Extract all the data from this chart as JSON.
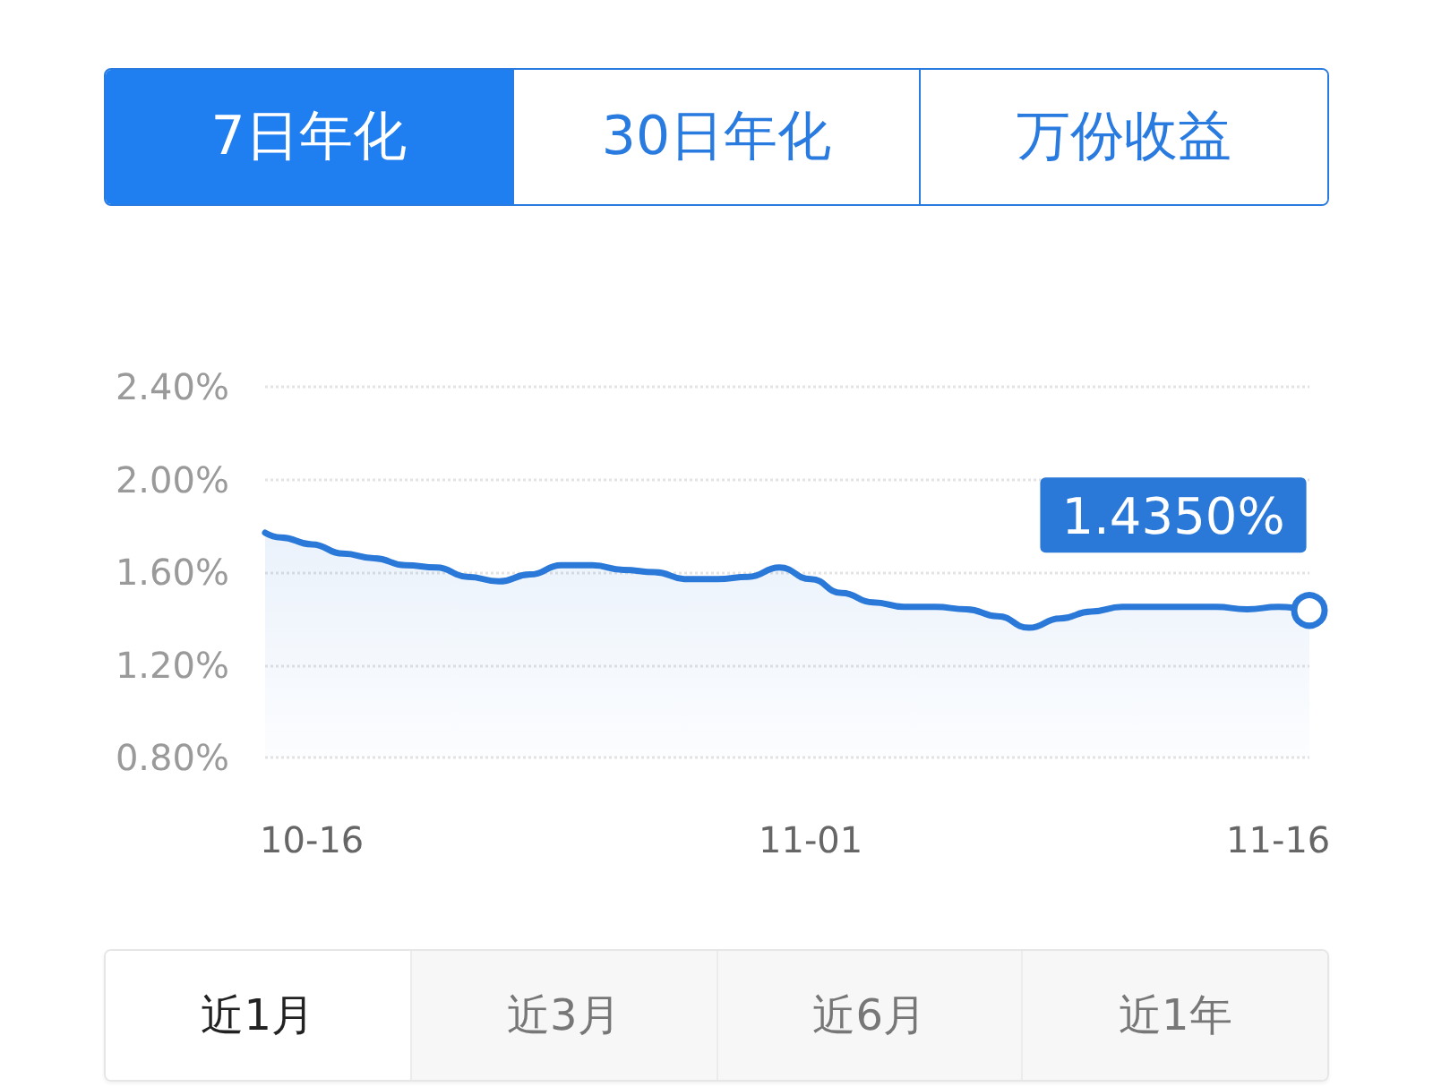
{
  "chart_data": [
    {
      "type": "other",
      "categories": [
        "7日年化",
        "30日年化",
        "万份收益"
      ],
      "colors": [
        "#1f7ff0",
        "#ffffff",
        "#ffffff"
      ]
    },
    {
      "type": "area",
      "x": [
        "--10-14T12:00",
        "--10-15",
        "--10-16",
        "--10-17",
        "--10-18",
        "--10-19",
        "--10-20",
        "--10-21",
        "--10-22",
        "--10-23",
        "--10-24",
        "--10-25",
        "--10-26",
        "--10-27",
        "--10-28",
        "--10-29",
        "--10-30",
        "--10-31",
        "--11-01",
        "--11-02",
        "--11-03",
        "--11-04",
        "--11-05",
        "--11-06",
        "--11-07",
        "--11-08",
        "--11-09",
        "--11-10",
        "--11-11",
        "--11-12",
        "--11-13",
        "--11-14",
        "--11-15",
        "--11-16",
        "--11-17"
      ],
      "series": [
        {
          "type": "area",
          "color": "#2a78d8",
          "values": [
            1.77,
            1.75,
            1.72,
            1.68,
            1.66,
            1.63,
            1.62,
            1.58,
            1.56,
            1.59,
            1.63,
            1.63,
            1.61,
            1.6,
            1.57,
            1.57,
            1.58,
            1.62,
            1.57,
            1.51,
            1.47,
            1.45,
            1.45,
            1.44,
            1.41,
            1.36,
            1.4,
            1.43,
            1.45,
            1.45,
            1.45,
            1.45,
            1.44,
            1.45,
            1.435
          ]
        },
        {
          "type": "scatter",
          "color": "#2a78d8",
          "marker": "circle",
          "x": [
            "--11-17"
          ],
          "values": [
            1.435
          ],
          "value_labels": [
            "1.4350%"
          ]
        }
      ],
      "grid": "y",
      "xlim": [
        "--10-14T12:00",
        "--11-17"
      ],
      "xticks": [
        {
          "value": "--10-16",
          "label": "10-16"
        },
        {
          "value": "--11-01",
          "label": "11-01"
        },
        {
          "value": "--11-16",
          "label": "11-16"
        }
      ],
      "ylim": [
        0.8,
        2.4
      ],
      "yticks": [
        {
          "value": 0.8,
          "label": "0.80%"
        },
        {
          "value": 1.2,
          "label": "1.20%"
        },
        {
          "value": 1.6,
          "label": "1.60%"
        },
        {
          "value": 2.0,
          "label": "2.00%"
        },
        {
          "value": 2.4,
          "label": "2.40%"
        }
      ]
    },
    {
      "type": "other",
      "categories": [
        "近1月",
        "近3月",
        "近6月",
        "近1年"
      ],
      "colors": [
        "#ffffff",
        "#f7f7f7",
        "#f7f7f7",
        "#f7f7f7"
      ]
    }
  ]
}
